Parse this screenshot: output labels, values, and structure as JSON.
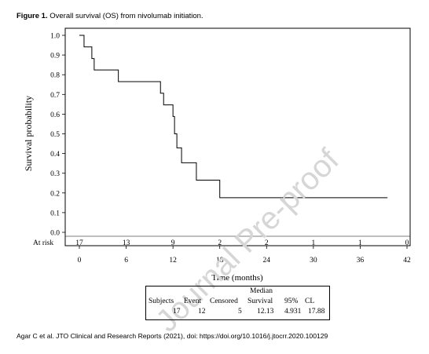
{
  "caption": {
    "label": "Figure 1.",
    "text": "Overall survival (OS) from nivolumab initiation."
  },
  "citation": "Agar C et al. JTO Clinical and Research Reports (2021), doi: https://doi.org/10.1016/j.jtocrr.2020.100129",
  "watermark": "Journal Pre-proof",
  "chart_data": {
    "type": "line",
    "subtype": "kaplan-meier step",
    "title": "",
    "xlabel": "Time (months)",
    "ylabel": "Survival probability",
    "xlim": [
      0,
      42
    ],
    "ylim": [
      0,
      1
    ],
    "x_ticks": [
      "0",
      "6",
      "12",
      "18",
      "24",
      "30",
      "36",
      "42"
    ],
    "y_ticks": [
      "0.0",
      "0.1",
      "0.2",
      "0.3",
      "0.4",
      "0.5",
      "0.6",
      "0.7",
      "0.8",
      "0.9",
      "1.0"
    ],
    "series": [
      {
        "x": [
          0,
          0.6,
          1.6,
          1.9,
          5.0,
          10.4,
          10.8,
          12.0,
          12.2,
          12.5,
          13.1,
          15.0,
          18.0,
          39.5
        ],
        "y": [
          1.0,
          0.941,
          0.882,
          0.824,
          0.765,
          0.706,
          0.647,
          0.588,
          0.5,
          0.429,
          0.353,
          0.265,
          0.176,
          0.176
        ]
      }
    ],
    "at_risk": {
      "label": "At risk",
      "times": [
        0,
        6,
        12,
        18,
        24,
        30,
        36,
        42
      ],
      "counts": [
        "17",
        "13",
        "9",
        "2",
        "2",
        "1",
        "1",
        "0"
      ]
    },
    "stats_table": {
      "header_top": "Median",
      "headers": [
        "Subjects",
        "Event",
        "Censored",
        "Survival",
        "95%",
        "CL"
      ],
      "values": [
        "17",
        "12",
        "5",
        "12.13",
        "4.931",
        "17.88"
      ]
    }
  }
}
